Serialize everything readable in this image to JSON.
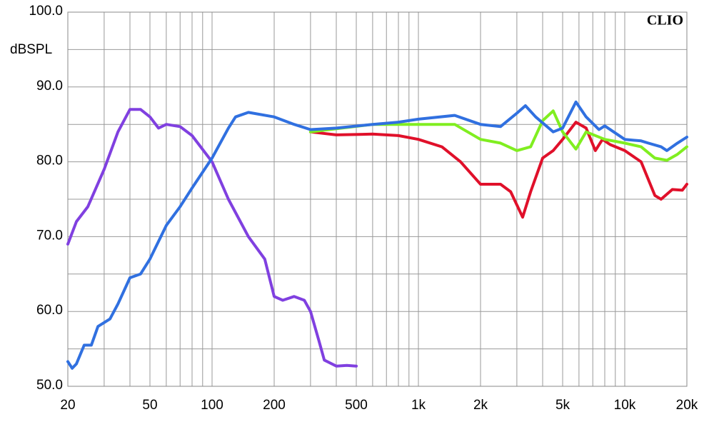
{
  "chart_data": {
    "type": "line",
    "ylabel": "dBSPL",
    "annotation": "CLIO",
    "xscale": "log",
    "grid": true,
    "xlim": [
      20,
      20000
    ],
    "ylim": [
      50,
      100
    ],
    "yticks": [
      {
        "value": 50,
        "label": "50.0"
      },
      {
        "value": 60,
        "label": "60.0"
      },
      {
        "value": 70,
        "label": "70.0"
      },
      {
        "value": 80,
        "label": "80.0"
      },
      {
        "value": 90,
        "label": "90.0"
      },
      {
        "value": 100,
        "label": "100.0"
      }
    ],
    "minor_yticks": [
      55,
      65,
      75,
      85,
      95
    ],
    "xticks": [
      20,
      50,
      100,
      200,
      500,
      {
        "value": 1000,
        "label": "1k"
      },
      {
        "value": 2000,
        "label": "2k"
      },
      {
        "value": 5000,
        "label": "5k"
      },
      {
        "value": 10000,
        "label": "10k"
      },
      {
        "value": 20000,
        "label": "20k"
      }
    ],
    "minor_xticks": [
      30,
      40,
      60,
      70,
      80,
      90,
      300,
      400,
      600,
      700,
      800,
      900,
      3000,
      4000,
      6000,
      7000,
      8000,
      9000
    ],
    "series": [
      {
        "color": "#e0102a",
        "x": [
          300,
          400,
          600,
          800,
          1000,
          1300,
          1600,
          2000,
          2500,
          2800,
          3200,
          3500,
          4000,
          4500,
          5000,
          5800,
          6500,
          7200,
          7800,
          8500,
          10000,
          12000,
          14000,
          15000,
          17000,
          19000,
          20000
        ],
        "values": [
          84,
          83.6,
          83.7,
          83.5,
          83,
          82,
          80,
          77,
          77,
          76,
          72.6,
          76,
          80.5,
          81.5,
          83,
          85.3,
          84.5,
          81.5,
          83,
          82.3,
          81.5,
          80,
          75.5,
          75,
          76.3,
          76.2,
          77
        ]
      },
      {
        "color": "#80ee20",
        "x": [
          300,
          600,
          1000,
          1500,
          2000,
          2500,
          3000,
          3500,
          4000,
          4500,
          5000,
          5800,
          6500,
          8000,
          10000,
          12000,
          14000,
          16000,
          18000,
          20000
        ],
        "values": [
          84,
          85,
          85,
          85,
          83,
          82.5,
          81.5,
          82,
          85.5,
          86.8,
          84,
          81.7,
          84,
          83,
          82.5,
          82,
          80.5,
          80.2,
          81,
          82
        ]
      },
      {
        "color": "#8040e0",
        "x": [
          20,
          22,
          25,
          30,
          35,
          40,
          45,
          50,
          55,
          60,
          70,
          80,
          100,
          120,
          150,
          180,
          200,
          220,
          250,
          280,
          300,
          330,
          350,
          400,
          450,
          500
        ],
        "values": [
          69,
          72,
          74,
          79,
          84,
          87,
          87,
          86,
          84.5,
          85,
          84.7,
          83.5,
          80,
          75,
          70,
          67,
          62,
          61.5,
          62,
          61.5,
          60,
          56,
          53.5,
          52.7,
          52.8,
          52.7
        ]
      },
      {
        "color": "#3070e0",
        "x": [
          20,
          21,
          22,
          24,
          26,
          28,
          32,
          35,
          40,
          45,
          50,
          60,
          70,
          80,
          100,
          120,
          130,
          150,
          200,
          250,
          300,
          400,
          600,
          800,
          1000,
          1500,
          2000,
          2500,
          3000,
          3300,
          3700,
          4500,
          5000,
          5800,
          6500,
          7500,
          8000,
          10000,
          12000,
          13000,
          15000,
          16000,
          18000,
          20000
        ],
        "values": [
          53.3,
          52.4,
          53,
          55.5,
          55.5,
          58,
          59,
          61,
          64.5,
          65,
          67,
          71.5,
          74,
          76.5,
          80.5,
          84.5,
          86,
          86.6,
          86,
          85,
          84.3,
          84.5,
          85,
          85.3,
          85.7,
          86.2,
          85,
          84.7,
          86.5,
          87.5,
          86,
          84,
          84.5,
          88,
          86,
          84.3,
          84.8,
          83,
          82.8,
          82.5,
          82,
          81.5,
          82.5,
          83.3
        ]
      }
    ]
  }
}
